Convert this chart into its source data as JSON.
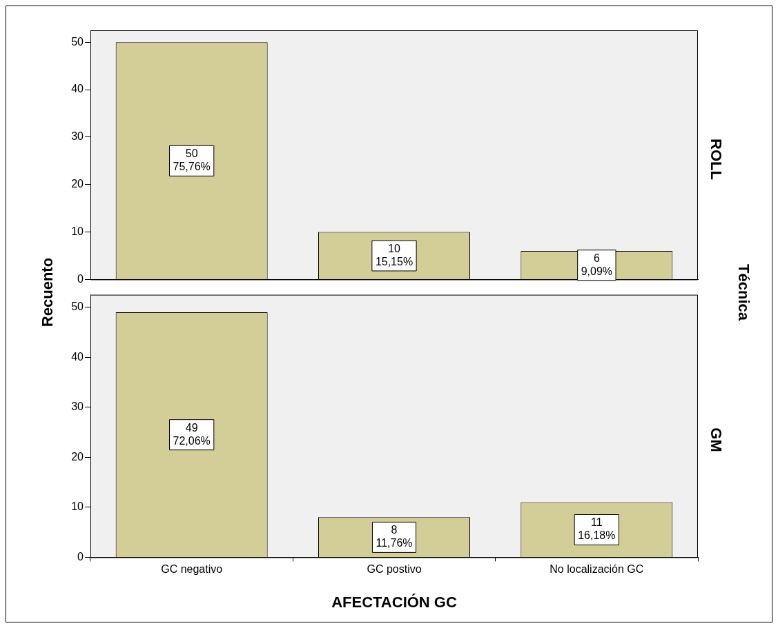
{
  "chart_data": [
    {
      "type": "bar",
      "y2label": "ROLL",
      "ylabel": "Recuento",
      "annotations": [
        "Técnica"
      ],
      "categories": [
        null,
        null,
        null
      ],
      "values": [
        50,
        10,
        6
      ],
      "value_labels": [
        "50\n75,76%",
        "10\n15,15%",
        "6\n9,09%"
      ],
      "color": "#d3ce97",
      "ylim": [
        0,
        52.5
      ],
      "yticks": [
        0,
        10,
        20,
        30,
        40,
        50
      ],
      "tick_labels": "y"
    },
    {
      "type": "bar",
      "y2label": "GM",
      "xlabel": "AFECTACIÓN GC",
      "categories": [
        "GC negativo",
        "GC postivo",
        "No localización GC"
      ],
      "values": [
        49,
        8,
        11
      ],
      "value_labels": [
        "49\n72,06%",
        "8\n11,76%",
        "11\n16,18%"
      ],
      "color": "#d3ce97",
      "ylim": [
        0,
        52.5
      ],
      "yticks": [
        0,
        10,
        20,
        30,
        40,
        50
      ]
    }
  ]
}
